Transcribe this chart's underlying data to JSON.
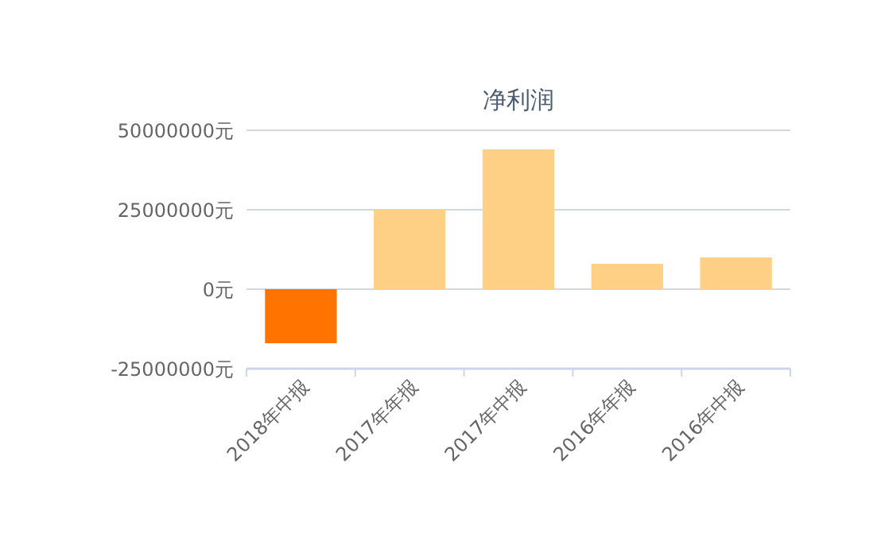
{
  "chart_data": {
    "type": "bar",
    "title": "净利润",
    "categories": [
      "2018年中报",
      "2017年年报",
      "2017年中报",
      "2016年年报",
      "2016年中报"
    ],
    "values": [
      -17000000,
      25000000,
      44000000,
      8000000,
      10000000
    ],
    "colors": [
      "#ff7400",
      "#fdd085",
      "#fdd085",
      "#fdd085",
      "#fdd085"
    ],
    "ylim": [
      -25000000,
      50000000
    ],
    "yticks": [
      {
        "value": -25000000,
        "label": "-25000000元"
      },
      {
        "value": 0,
        "label": "0元"
      },
      {
        "value": 25000000,
        "label": "25000000元"
      },
      {
        "value": 50000000,
        "label": "50000000元"
      }
    ],
    "grid": "y"
  }
}
